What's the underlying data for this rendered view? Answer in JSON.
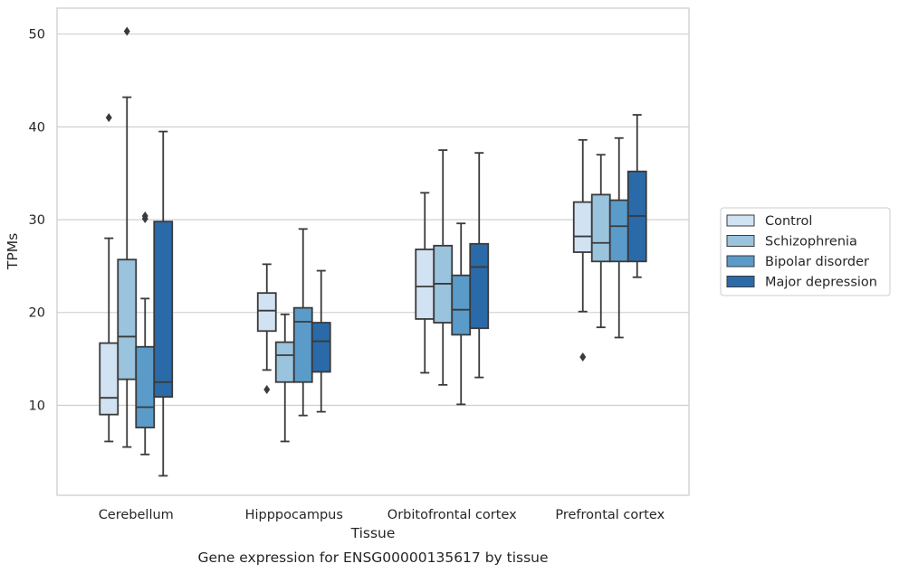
{
  "caption": "Gene expression for ENSG00000135617 by tissue",
  "chart_data": {
    "type": "boxplot",
    "title": "",
    "xlabel": "Tissue",
    "ylabel": "TPMs",
    "categories": [
      "Cerebellum",
      "Hipppocampus",
      "Orbitofrontal cortex",
      "Prefrontal cortex"
    ],
    "ylim": [
      0.3,
      52.8
    ],
    "yticks": [
      10,
      20,
      30,
      40,
      50
    ],
    "grid": true,
    "legend_position": "right",
    "series": [
      {
        "name": "Control",
        "color": "#d1e2f2",
        "boxes": [
          {
            "whislo": 6.1,
            "q1": 9.0,
            "med": 10.8,
            "q3": 16.7,
            "whishi": 28.0,
            "fliers": [
              41.0
            ]
          },
          {
            "whislo": 13.8,
            "q1": 18.0,
            "med": 20.2,
            "q3": 22.1,
            "whishi": 25.2,
            "fliers": [
              11.7
            ]
          },
          {
            "whislo": 13.5,
            "q1": 19.3,
            "med": 22.8,
            "q3": 26.8,
            "whishi": 32.9,
            "fliers": []
          },
          {
            "whislo": 20.1,
            "q1": 26.5,
            "med": 28.2,
            "q3": 31.9,
            "whishi": 38.6,
            "fliers": [
              15.2
            ]
          }
        ]
      },
      {
        "name": "Schizophrenia",
        "color": "#9ac3de",
        "boxes": [
          {
            "whislo": 5.5,
            "q1": 12.8,
            "med": 17.4,
            "q3": 25.7,
            "whishi": 43.2,
            "fliers": [
              50.3
            ]
          },
          {
            "whislo": 6.1,
            "q1": 12.5,
            "med": 15.4,
            "q3": 16.8,
            "whishi": 19.8,
            "fliers": []
          },
          {
            "whislo": 12.2,
            "q1": 18.9,
            "med": 23.1,
            "q3": 27.2,
            "whishi": 37.5,
            "fliers": []
          },
          {
            "whislo": 18.4,
            "q1": 25.5,
            "med": 27.5,
            "q3": 32.7,
            "whishi": 37.0,
            "fliers": []
          }
        ]
      },
      {
        "name": "Bipolar disorder",
        "color": "#5a9bc9",
        "boxes": [
          {
            "whislo": 4.7,
            "q1": 7.6,
            "med": 9.8,
            "q3": 16.3,
            "whishi": 21.5,
            "fliers": [
              30.4,
              30.1
            ]
          },
          {
            "whislo": 8.9,
            "q1": 12.5,
            "med": 19.0,
            "q3": 20.5,
            "whishi": 29.0,
            "fliers": []
          },
          {
            "whislo": 10.1,
            "q1": 17.6,
            "med": 20.3,
            "q3": 24.0,
            "whishi": 29.6,
            "fliers": []
          },
          {
            "whislo": 17.3,
            "q1": 25.5,
            "med": 29.3,
            "q3": 32.1,
            "whishi": 38.8,
            "fliers": []
          }
        ]
      },
      {
        "name": "Major depression",
        "color": "#2b6aa8",
        "boxes": [
          {
            "whislo": 2.4,
            "q1": 10.9,
            "med": 12.5,
            "q3": 29.8,
            "whishi": 39.5,
            "fliers": []
          },
          {
            "whislo": 9.3,
            "q1": 13.6,
            "med": 16.9,
            "q3": 18.9,
            "whishi": 24.5,
            "fliers": []
          },
          {
            "whislo": 13.0,
            "q1": 18.3,
            "med": 24.9,
            "q3": 27.4,
            "whishi": 37.2,
            "fliers": []
          },
          {
            "whislo": 23.8,
            "q1": 25.5,
            "med": 30.4,
            "q3": 35.2,
            "whishi": 41.3,
            "fliers": []
          }
        ]
      }
    ]
  }
}
